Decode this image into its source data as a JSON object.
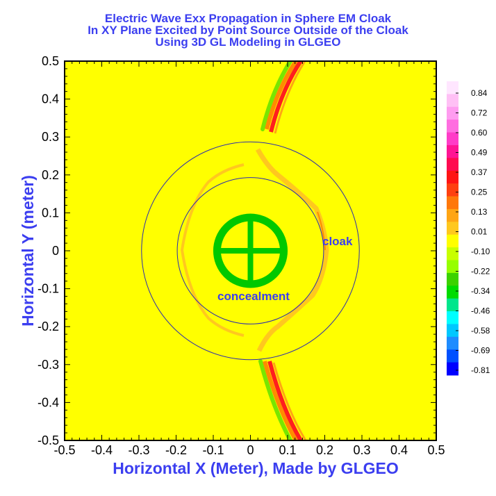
{
  "chart_data": {
    "type": "heatmap",
    "title_lines": [
      "Electric Wave Exx Propagation in Sphere EM Cloak",
      "In XY Plane Excited by Point Source Outside of the Cloak",
      "Using 3D GL Modeling in GLGEO"
    ],
    "xlabel": "Horizontal X (Meter), Made by GLGEO",
    "ylabel": "Horizontal Y (meter)",
    "xlim": [
      -0.5,
      0.5
    ],
    "ylim": [
      -0.5,
      0.5
    ],
    "x_ticks": [
      "-0.5",
      "-0.4",
      "-0.3",
      "-0.2",
      "-0.1",
      "0",
      "0.1",
      "0.2",
      "0.3",
      "0.4",
      "0.5"
    ],
    "y_ticks": [
      "0.5",
      "0.4",
      "0.3",
      "0.2",
      "0.1",
      "0",
      "-0.1",
      "-0.2",
      "-0.3",
      "-0.4",
      "-0.5"
    ],
    "x_tick_values": [
      -0.5,
      -0.4,
      -0.3,
      -0.2,
      -0.1,
      0,
      0.1,
      0.2,
      0.3,
      0.4,
      0.5
    ],
    "y_tick_values": [
      0.5,
      0.4,
      0.3,
      0.2,
      0.1,
      0,
      -0.1,
      -0.2,
      -0.3,
      -0.4,
      -0.5
    ],
    "background_value": 0.0,
    "cloak_inner_radius": 0.195,
    "cloak_outer_radius": 0.29,
    "concealment_radius": 0.1,
    "colorbar": {
      "labels": [
        "0.84",
        "0.72",
        "0.60",
        "0.49",
        "0.37",
        "0.25",
        "0.13",
        "0.01",
        "-0.10",
        "-0.22",
        "-0.34",
        "-0.46",
        "-0.58",
        "-0.69",
        "-0.81"
      ],
      "colors": [
        "#ffe6ff",
        "#ffc0f5",
        "#ff9cf0",
        "#ff6ee0",
        "#ff3cc8",
        "#ff1494",
        "#ff0a50",
        "#ff1414",
        "#ff4010",
        "#ff780a",
        "#ffa514",
        "#ffc81e",
        "#ffff00",
        "#c8ff00",
        "#96ff00",
        "#3cd200",
        "#00dc00",
        "#00e68c",
        "#00ffff",
        "#00c8ff",
        "#1e8cff",
        "#0050ff",
        "#0000ff"
      ]
    },
    "annotations": {
      "cloak": "cloak",
      "concealment": "concealment"
    }
  }
}
